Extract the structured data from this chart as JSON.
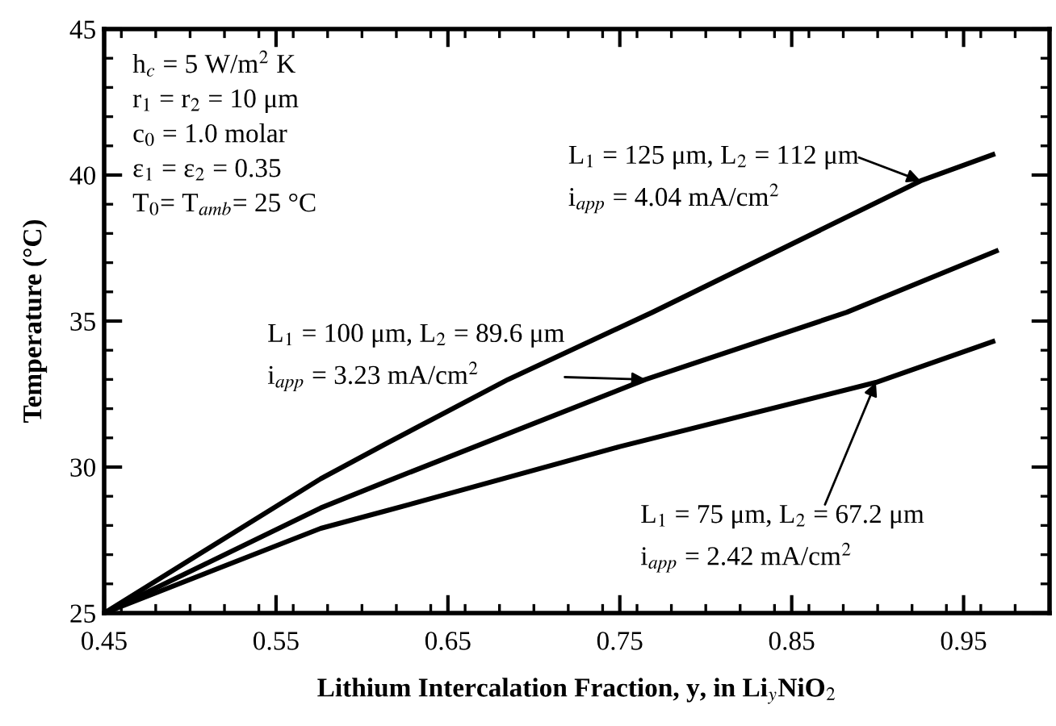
{
  "chart_data": {
    "type": "line",
    "xlabel": "Lithium Intercalation Fraction, y, in Li$_{y}$NiO$_{2}$",
    "ylabel": "Temperature (°C)",
    "xlim": [
      0.45,
      1.0
    ],
    "xticks": [
      0.45,
      0.55,
      0.65,
      0.75,
      0.85,
      0.95
    ],
    "ylim": [
      25,
      45
    ],
    "yticks": [
      25,
      30,
      35,
      40,
      45
    ],
    "grid": false,
    "legend": false,
    "marker": "none",
    "line_style": "solid",
    "series": [
      {
        "color": "#000000",
        "x": [
          0.45,
          0.576,
          0.614,
          0.685,
          0.769,
          0.925,
          0.967
        ],
        "values": [
          25,
          29.6,
          30.8,
          33.0,
          35.3,
          39.8,
          40.7
        ]
      },
      {
        "color": "#000000",
        "x": [
          0.45,
          0.576,
          0.614,
          0.765,
          0.882,
          0.969
        ],
        "values": [
          25,
          28.6,
          29.5,
          33.0,
          35.3,
          37.4
        ]
      },
      {
        "color": "#000000",
        "x": [
          0.45,
          0.576,
          0.614,
          0.75,
          0.899,
          0.967
        ],
        "values": [
          25,
          27.9,
          28.5,
          30.7,
          32.9,
          34.3
        ]
      }
    ],
    "annotations": [
      "h$_{c}$ = 5 W/m$^{2}$ K\nr$_{1}$ = r$_{2}$ = 10 μm\nc$_{0}$ = 1.0 molar\nε$_{1}$ = ε$_{2}$ = 0.35\nT$_{0}$= T$_{amb}$= 25 °C",
      {
        "text": "L$_{1}$ = 125 μm, L$_{2}$ = 112 μm",
        "x": 0.925,
        "y": 39.8
      },
      "i$_{app}$ = 4.04 mA/cm$^{2}$",
      {
        "text": "L$_{1}$ = 100 μm, L$_{2}$ = 89.6 μm",
        "x": 0.765,
        "y": 33.0
      },
      "i$_{app}$ = 3.23 mA/cm$^{2}$",
      {
        "text": "L$_{1}$ = 75 μm, L$_{2}$ = 67.2 μm",
        "x": 0.899,
        "y": 32.9
      },
      "i$_{app}$ = 2.42 mA/cm$^{2}$"
    ]
  }
}
